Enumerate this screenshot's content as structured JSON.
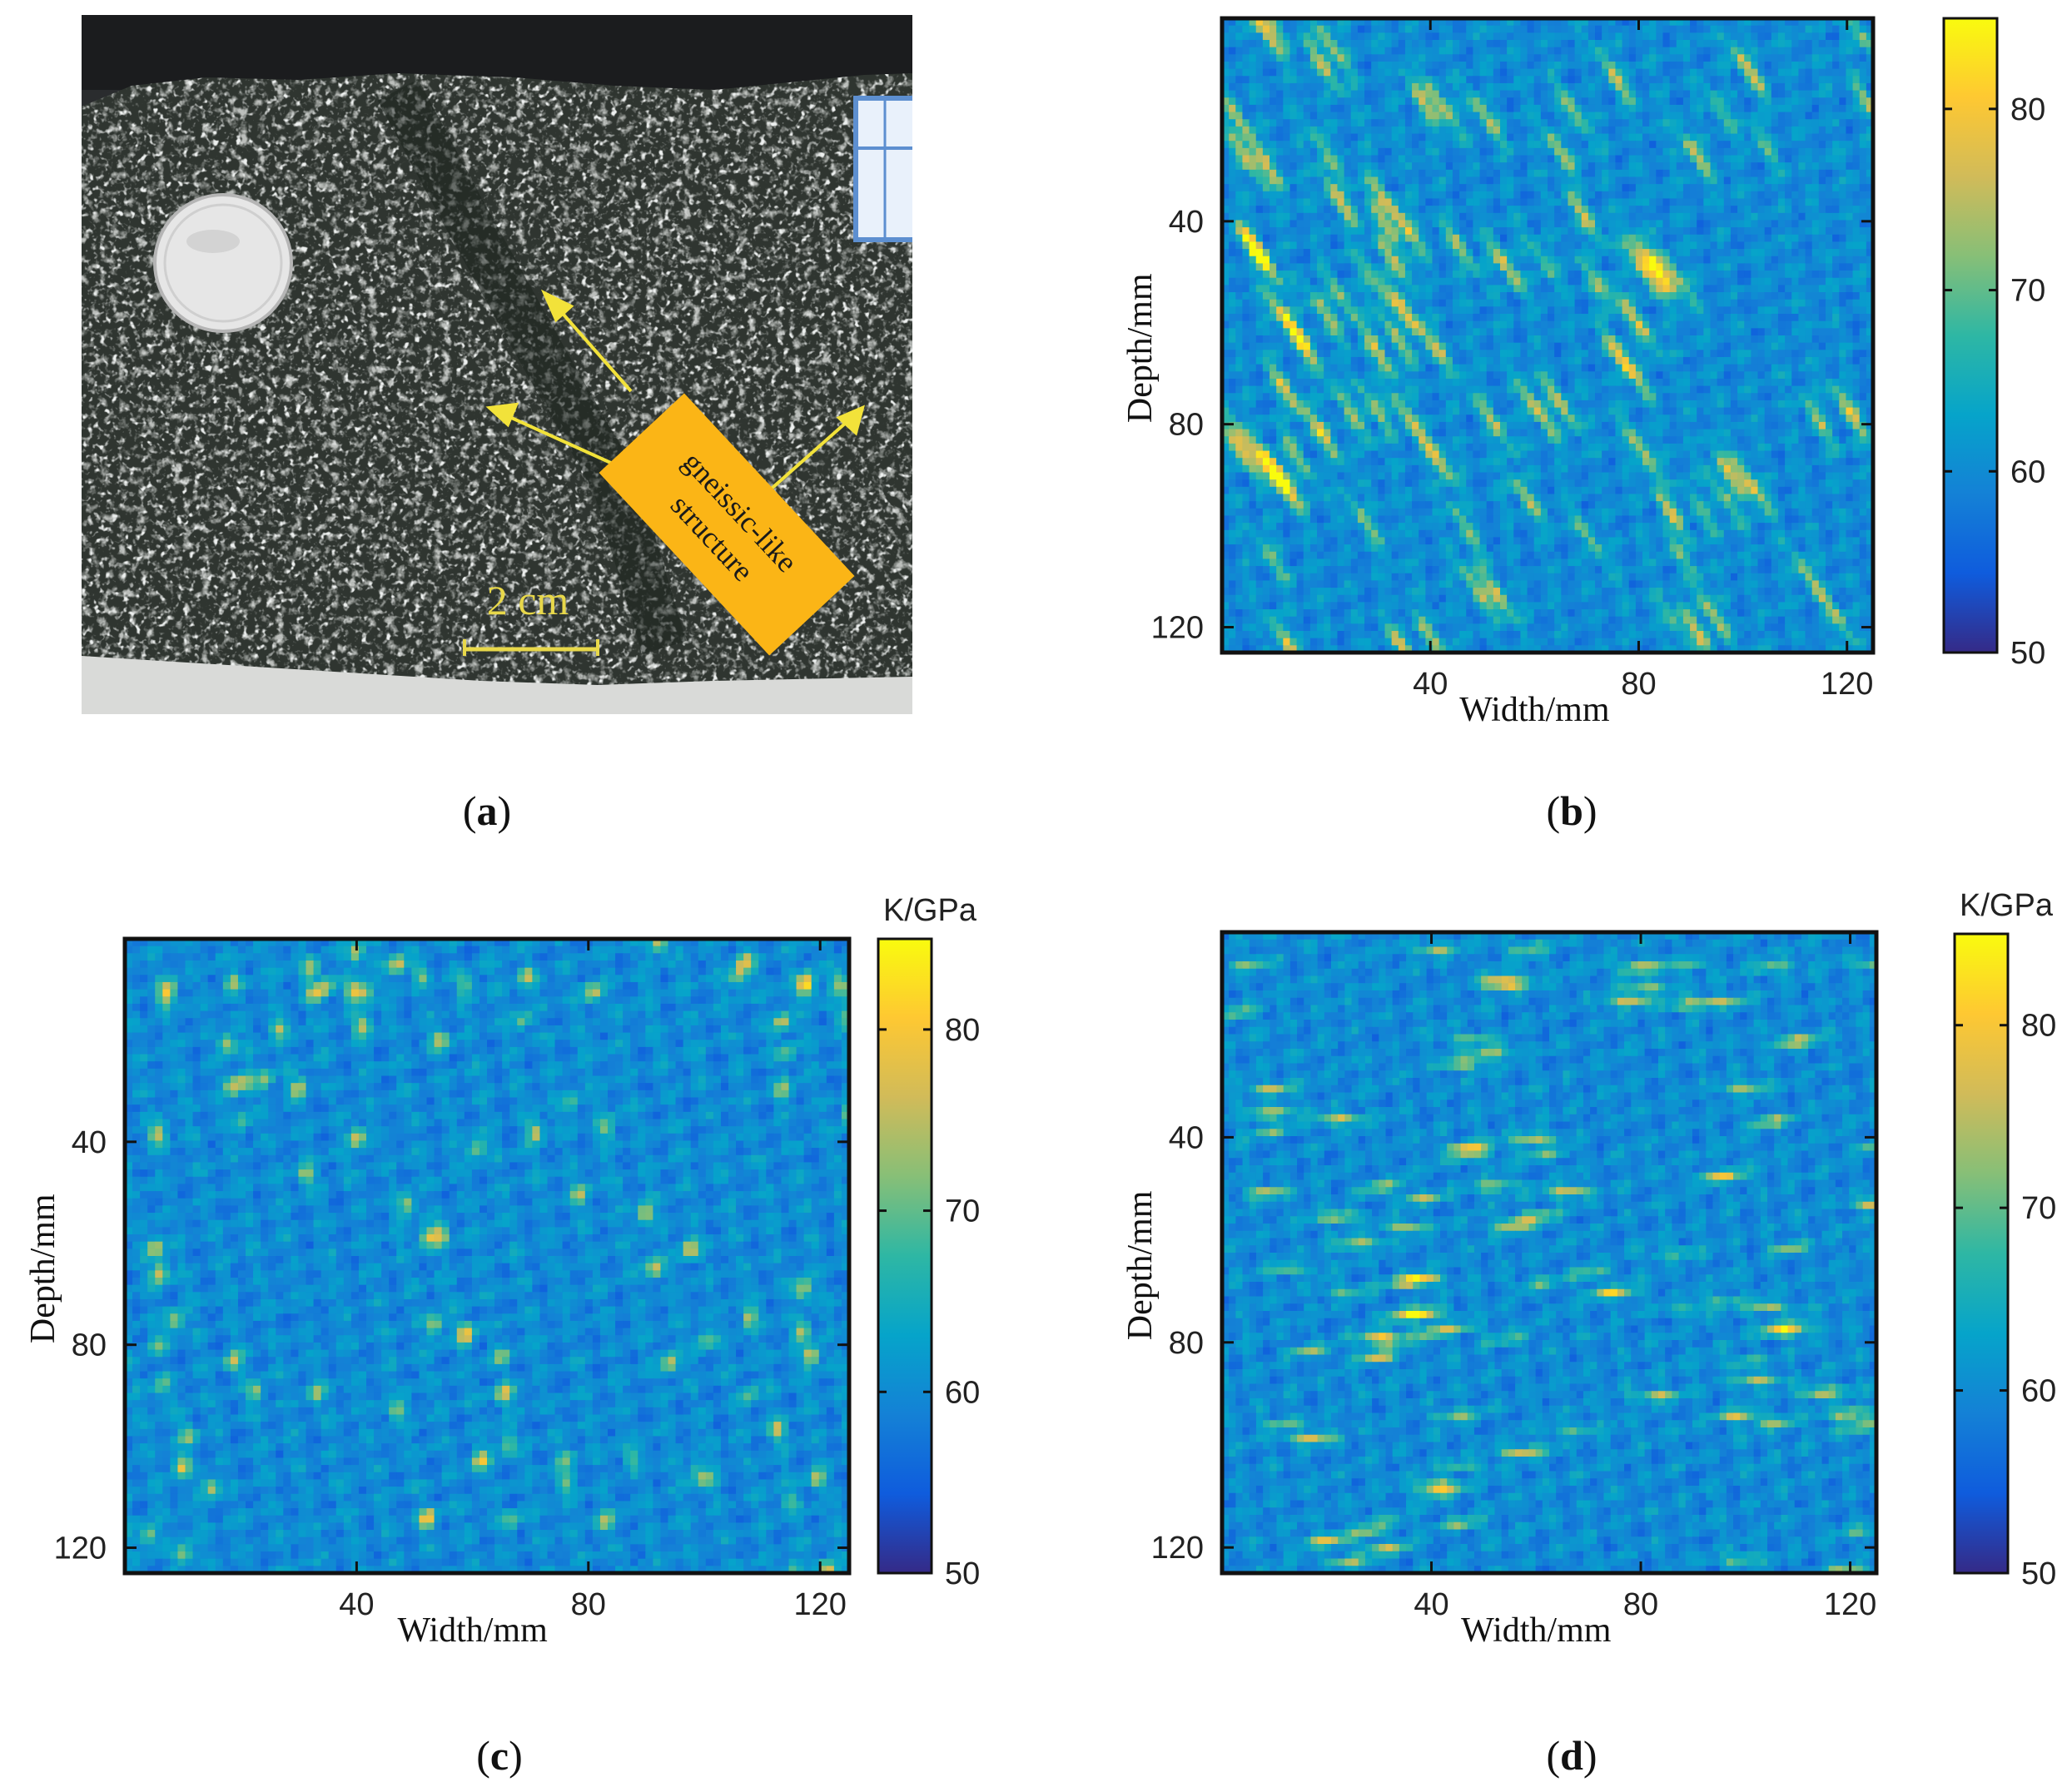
{
  "figure": {
    "panel_labels": [
      "a",
      "b",
      "c",
      "d"
    ]
  },
  "photo_panel": {
    "annotation_label": "gneissic-like structure",
    "annotation_line1": "gneissic-like",
    "annotation_line2": "structure",
    "scale_bar_label": "2 cm",
    "colors": {
      "arrow": "#f2e23a",
      "label_box": "#fbb516",
      "scale_bar": "#e8d84a"
    }
  },
  "colormap": {
    "name": "parula",
    "stops": [
      "#352a87",
      "#0f5cdd",
      "#1481d6",
      "#06a4ca",
      "#2eb7a4",
      "#87bf77",
      "#d1bb59",
      "#fec832",
      "#f9fb0e"
    ]
  },
  "chart_data": [
    {
      "panel": "b",
      "type": "heatmap",
      "xlabel": "Width/mm",
      "ylabel": "Depth/mm",
      "colorbar_title": "",
      "xlim": [
        0,
        125
      ],
      "ylim": [
        125,
        0
      ],
      "x_ticks": [
        40,
        80,
        120
      ],
      "y_ticks": [
        40,
        80,
        120
      ],
      "color_range": [
        50,
        85
      ],
      "colorbar_ticks": [
        50,
        60,
        70,
        80
      ],
      "texture": "diagonal streaks, top-left to bottom-right"
    },
    {
      "panel": "c",
      "type": "heatmap",
      "xlabel": "Width/mm",
      "ylabel": "Depth/mm",
      "colorbar_title": "K/GPa",
      "xlim": [
        0,
        125
      ],
      "ylim": [
        125,
        0
      ],
      "x_ticks": [
        40,
        80,
        120
      ],
      "y_ticks": [
        40,
        80,
        120
      ],
      "color_range": [
        50,
        85
      ],
      "colorbar_ticks": [
        50,
        60,
        70,
        80
      ],
      "texture": "isotropic blobs"
    },
    {
      "panel": "d",
      "type": "heatmap",
      "xlabel": "Width/mm",
      "ylabel": "Depth/mm",
      "colorbar_title": "K/GPa",
      "xlim": [
        0,
        125
      ],
      "ylim": [
        125,
        0
      ],
      "x_ticks": [
        40,
        80,
        120
      ],
      "y_ticks": [
        40,
        80,
        120
      ],
      "color_range": [
        50,
        85
      ],
      "colorbar_ticks": [
        50,
        60,
        70,
        80
      ],
      "texture": "horizontal streaks"
    }
  ]
}
